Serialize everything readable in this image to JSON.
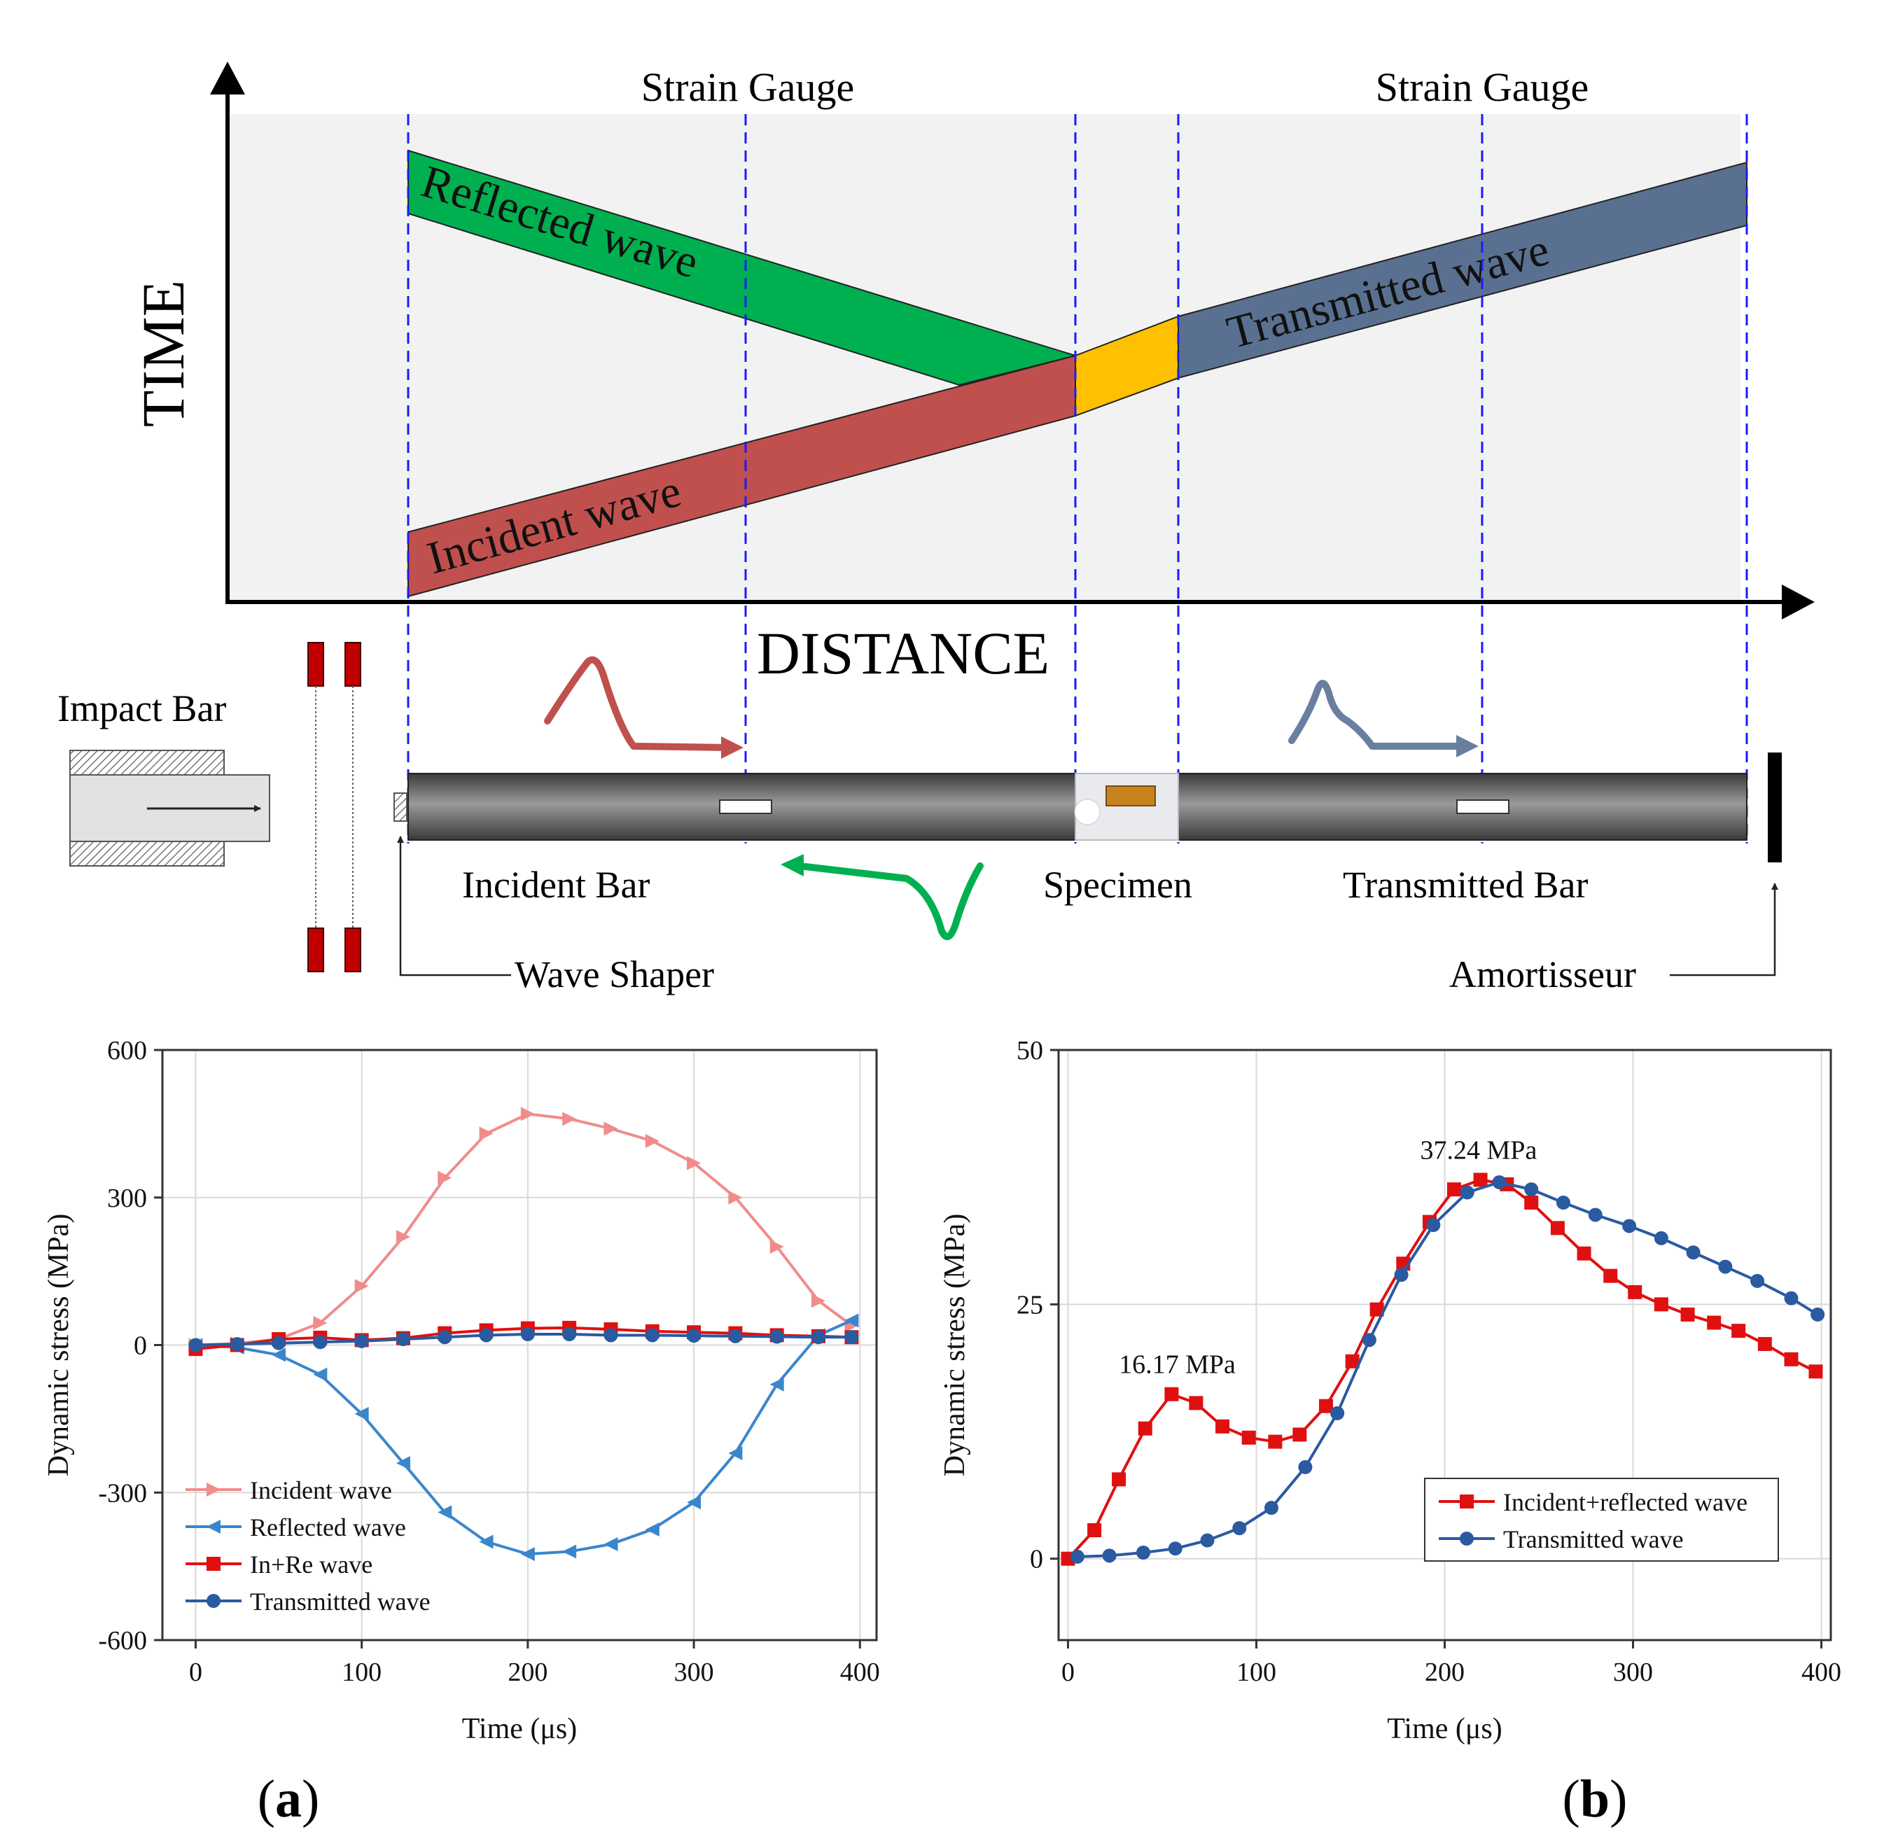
{
  "diagram": {
    "axis_time": "TIME",
    "axis_distance": "DISTANCE",
    "gauge_label_1": "Strain Gauge",
    "gauge_label_2": "Strain Gauge",
    "wave_reflected": "Reflected wave",
    "wave_incident": "Incident wave",
    "wave_transmitted": "Transmitted wave",
    "label_impact_bar": "Impact Bar",
    "label_incident_bar": "Incident Bar",
    "label_specimen": "Specimen",
    "label_transmitted_bar": "Transmitted Bar",
    "label_wave_shaper": "Wave Shaper",
    "label_amortisseur": "Amortisseur",
    "colors": {
      "reflected": "#00b050",
      "incident": "#c0504d",
      "specimen_zone": "#ffc000",
      "transmitted": "#5a7090",
      "guide": "#1a1aff",
      "plot_bg": "#f2f2f2"
    }
  },
  "panel_labels": {
    "a": "a",
    "b": "b"
  },
  "chart_data": [
    {
      "type": "line",
      "panel": "a",
      "xlabel": "Time (μs)",
      "ylabel": "Dynamic stress (MPa)",
      "xlim": [
        -20,
        410
      ],
      "ylim": [
        -600,
        600
      ],
      "xticks": [
        0,
        100,
        200,
        300,
        400
      ],
      "yticks": [
        -600,
        -300,
        0,
        300,
        600
      ],
      "grid": true,
      "legend": "bottom-left",
      "series": [
        {
          "name": "Incident wave",
          "color": "#f08c8c",
          "marker": "triangle-right",
          "x": [
            0,
            25,
            50,
            75,
            100,
            125,
            150,
            175,
            200,
            225,
            250,
            275,
            300,
            325,
            350,
            375,
            395
          ],
          "y": [
            0,
            3,
            12,
            45,
            120,
            220,
            340,
            430,
            470,
            460,
            440,
            415,
            370,
            300,
            200,
            90,
            40
          ]
        },
        {
          "name": "Reflected wave",
          "color": "#3a86cc",
          "marker": "triangle-left",
          "x": [
            0,
            25,
            50,
            75,
            100,
            125,
            150,
            175,
            200,
            225,
            250,
            275,
            300,
            325,
            350,
            375,
            395
          ],
          "y": [
            0,
            -5,
            -20,
            -60,
            -140,
            -240,
            -340,
            -400,
            -425,
            -420,
            -405,
            -375,
            -320,
            -220,
            -80,
            20,
            50
          ]
        },
        {
          "name": "In+Re wave",
          "color": "#e01010",
          "marker": "square",
          "x": [
            0,
            25,
            50,
            75,
            100,
            125,
            150,
            175,
            200,
            225,
            250,
            275,
            300,
            325,
            350,
            375,
            395
          ],
          "y": [
            -8,
            0,
            12,
            15,
            10,
            14,
            24,
            30,
            34,
            35,
            32,
            28,
            26,
            24,
            20,
            18,
            16
          ]
        },
        {
          "name": "Transmitted wave",
          "color": "#2a5aa0",
          "marker": "circle",
          "x": [
            0,
            25,
            50,
            75,
            100,
            125,
            150,
            175,
            200,
            225,
            250,
            275,
            300,
            325,
            350,
            375,
            395
          ],
          "y": [
            0,
            2,
            4,
            6,
            8,
            12,
            16,
            20,
            22,
            22,
            20,
            20,
            19,
            18,
            17,
            16,
            16
          ]
        }
      ]
    },
    {
      "type": "line",
      "panel": "b",
      "xlabel": "Time (μs)",
      "ylabel": "Dynamic stress (MPa)",
      "xlim": [
        -5,
        405
      ],
      "ylim": [
        -8,
        50
      ],
      "xticks": [
        0,
        100,
        200,
        300,
        400
      ],
      "yticks": [
        0,
        25,
        50
      ],
      "grid": true,
      "legend": "bottom-right",
      "annotations": [
        {
          "text": "16.17 MPa",
          "x": 58,
          "y": 16.17
        },
        {
          "text": "37.24 MPa",
          "x": 218,
          "y": 37.24
        }
      ],
      "series": [
        {
          "name": "Incident+reflected wave",
          "color": "#e01010",
          "marker": "square",
          "x": [
            0,
            14,
            27,
            41,
            55,
            68,
            82,
            96,
            110,
            123,
            137,
            151,
            164,
            178,
            192,
            205,
            219,
            233,
            246,
            260,
            274,
            288,
            301,
            315,
            329,
            343,
            356,
            370,
            384,
            397
          ],
          "y": [
            0,
            2.8,
            7.8,
            12.8,
            16.17,
            15.3,
            13.0,
            11.9,
            11.5,
            12.2,
            15.0,
            19.4,
            24.5,
            29.0,
            33.1,
            36.3,
            37.24,
            36.8,
            35.0,
            32.5,
            30.0,
            27.8,
            26.2,
            25.0,
            24.0,
            23.2,
            22.4,
            21.1,
            19.6,
            18.4
          ]
        },
        {
          "name": "Transmitted wave",
          "color": "#2a5aa0",
          "marker": "circle",
          "x": [
            5,
            22,
            40,
            57,
            74,
            91,
            108,
            126,
            143,
            160,
            177,
            194,
            212,
            229,
            246,
            263,
            280,
            298,
            315,
            332,
            349,
            366,
            384,
            398
          ],
          "y": [
            0.2,
            0.3,
            0.6,
            1.0,
            1.8,
            3.0,
            5.0,
            9.0,
            14.3,
            21.5,
            27.9,
            32.8,
            36.0,
            37.0,
            36.3,
            35.0,
            33.8,
            32.7,
            31.5,
            30.1,
            28.7,
            27.3,
            25.6,
            24.0
          ]
        }
      ]
    }
  ]
}
